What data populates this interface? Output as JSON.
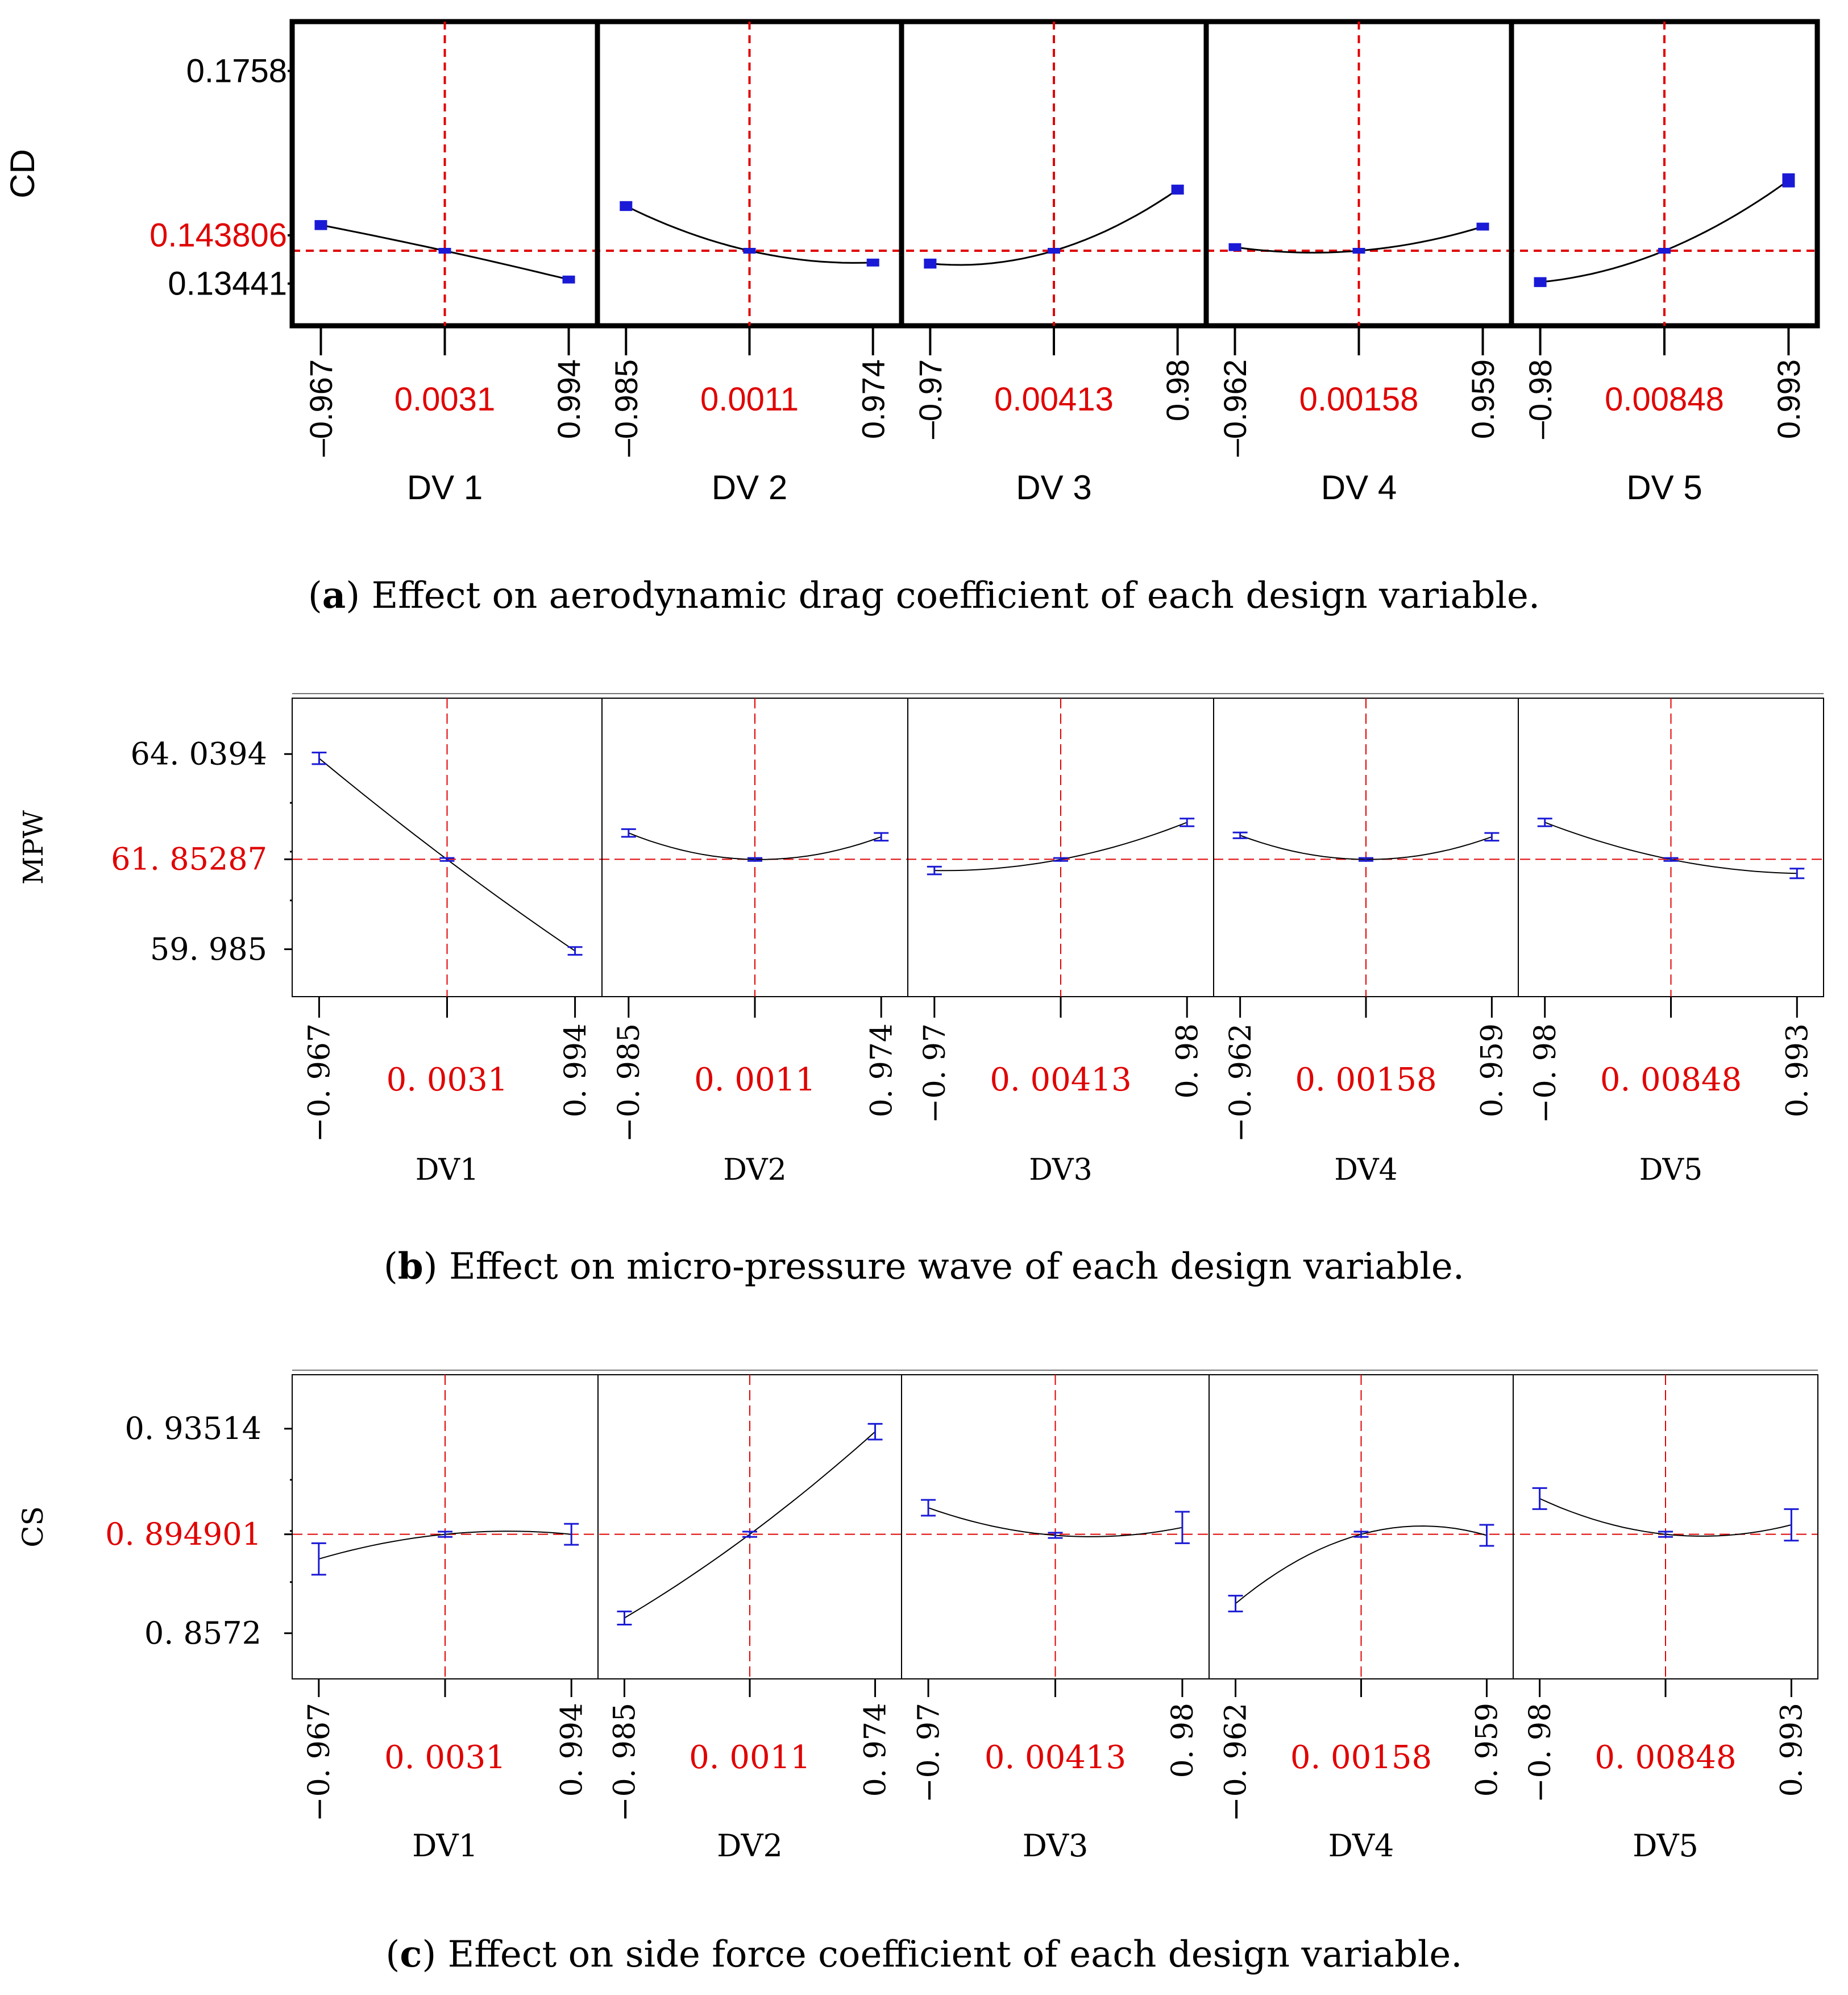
{
  "colors": {
    "curve": "#000000",
    "errorbar": "#1a1ad6",
    "reference": "#e00000",
    "tick_label": "#000000",
    "value_label": "#e00000"
  },
  "captions": [
    {
      "letter": "a",
      "text": " Effect on aerodynamic drag coefficient of each design variable."
    },
    {
      "letter": "b",
      "text": " Effect on micro-pressure wave of each design variable."
    },
    {
      "letter": "c",
      "text": " Effect on side force coefficient of each design variable."
    }
  ],
  "chart_data": [
    {
      "type": "line",
      "title": "Effect on aerodynamic drag coefficient of each design variable",
      "ylabel": "CD",
      "yticks": [
        "0.1758",
        "0.143806",
        "0.13441"
      ],
      "ylim": [
        0.1262,
        0.1854
      ],
      "reference_y": 0.1408,
      "panels": [
        {
          "xlabel": "DV 1",
          "xmin_label": "–0.967",
          "xmid_label": "0.0031",
          "xmax_label": "0.994",
          "x": [
            -0.967,
            0.0031,
            0.994
          ],
          "y": [
            0.1458,
            0.1408,
            0.1352
          ],
          "err": [
            0.0008,
            0.0004,
            0.0006
          ]
        },
        {
          "xlabel": "DV 2",
          "xmin_label": "–0.985",
          "xmid_label": "0.0011",
          "xmax_label": "0.974",
          "x": [
            -0.985,
            0.0011,
            0.974
          ],
          "y": [
            0.1495,
            0.1408,
            0.1385
          ],
          "err": [
            0.0008,
            0.0004,
            0.0006
          ]
        },
        {
          "xlabel": "DV 3",
          "xmin_label": "–0.97",
          "xmid_label": "0.00413",
          "xmax_label": "0.98",
          "x": [
            -0.97,
            0.00413,
            0.98
          ],
          "y": [
            0.1383,
            0.1408,
            0.1527
          ],
          "err": [
            0.0008,
            0.0004,
            0.0008
          ]
        },
        {
          "xlabel": "DV 4",
          "xmin_label": "–0.962",
          "xmid_label": "0.00158",
          "xmax_label": "0.959",
          "x": [
            -0.962,
            0.00158,
            0.959
          ],
          "y": [
            0.1415,
            0.1408,
            0.1455
          ],
          "err": [
            0.0006,
            0.0004,
            0.0006
          ]
        },
        {
          "xlabel": "DV 5",
          "xmin_label": "–0.98",
          "xmid_label": "0.00848",
          "xmax_label": "0.993",
          "x": [
            -0.98,
            0.00848,
            0.993
          ],
          "y": [
            0.1347,
            0.1408,
            0.1545
          ],
          "err": [
            0.0008,
            0.0004,
            0.0012
          ]
        }
      ]
    },
    {
      "type": "line",
      "title": "Effect on micro-pressure wave of each design variable",
      "ylabel": "MPW",
      "yticks": [
        "64. 0394",
        "61. 85287",
        "59. 985"
      ],
      "ylim": [
        59.0,
        65.2
      ],
      "reference_y": 61.85287,
      "panels": [
        {
          "xlabel": "DV1",
          "xmin_label": "−0. 967",
          "xmid_label": "0. 0031",
          "xmax_label": "0. 994",
          "x": [
            -0.967,
            0.0031,
            0.994
          ],
          "y": [
            63.95,
            61.85,
            59.95
          ],
          "err": [
            0.12,
            0.03,
            0.08
          ]
        },
        {
          "xlabel": "DV2",
          "xmin_label": "−0. 985",
          "xmid_label": "0. 0011",
          "xmax_label": "0. 974",
          "x": [
            -0.985,
            0.0011,
            0.974
          ],
          "y": [
            62.4,
            61.85,
            62.32
          ],
          "err": [
            0.08,
            0.03,
            0.08
          ]
        },
        {
          "xlabel": "DV3",
          "xmin_label": "−0. 97",
          "xmid_label": "0. 00413",
          "xmax_label": "0. 98",
          "x": [
            -0.97,
            0.00413,
            0.98
          ],
          "y": [
            61.62,
            61.85,
            62.62
          ],
          "err": [
            0.08,
            0.03,
            0.08
          ]
        },
        {
          "xlabel": "DV4",
          "xmin_label": "−0. 962",
          "xmid_label": "0. 00158",
          "xmax_label": "0. 959",
          "x": [
            -0.962,
            0.00158,
            0.959
          ],
          "y": [
            62.35,
            61.85,
            62.32
          ],
          "err": [
            0.06,
            0.03,
            0.08
          ]
        },
        {
          "xlabel": "DV5",
          "xmin_label": "−0. 98",
          "xmid_label": "0. 00848",
          "xmax_label": "0. 993",
          "x": [
            -0.98,
            0.00848,
            0.993
          ],
          "y": [
            62.62,
            61.85,
            61.56
          ],
          "err": [
            0.08,
            0.03,
            0.1
          ]
        }
      ]
    },
    {
      "type": "line",
      "title": "Effect on side force coefficient of each design variable",
      "ylabel": "CS",
      "yticks": [
        "0. 93514",
        "0. 894901",
        "0. 8572"
      ],
      "ylim": [
        0.8398,
        0.9557
      ],
      "reference_y": 0.894901,
      "panels": [
        {
          "xlabel": "DV1",
          "xmin_label": "−0. 967",
          "xmid_label": "0. 0031",
          "xmax_label": "0. 994",
          "x": [
            -0.967,
            0.0031,
            0.994
          ],
          "y": [
            0.8855,
            0.8949,
            0.8949
          ],
          "err": [
            0.006,
            0.001,
            0.004
          ]
        },
        {
          "xlabel": "DV2",
          "xmin_label": "−0. 985",
          "xmid_label": "0. 0011",
          "xmax_label": "0. 974",
          "x": [
            -0.985,
            0.0011,
            0.974
          ],
          "y": [
            0.863,
            0.8949,
            0.934
          ],
          "err": [
            0.0025,
            0.001,
            0.003
          ]
        },
        {
          "xlabel": "DV3",
          "xmin_label": "−0. 97",
          "xmid_label": "0. 00413",
          "xmax_label": "0. 98",
          "x": [
            -0.97,
            0.00413,
            0.98
          ],
          "y": [
            0.905,
            0.8945,
            0.8975
          ],
          "err": [
            0.003,
            0.001,
            0.006
          ]
        },
        {
          "xlabel": "DV4",
          "xmin_label": "−0. 962",
          "xmid_label": "0. 00158",
          "xmax_label": "0. 959",
          "x": [
            -0.962,
            0.00158,
            0.959
          ],
          "y": [
            0.8685,
            0.8949,
            0.8945
          ],
          "err": [
            0.003,
            0.001,
            0.004
          ]
        },
        {
          "xlabel": "DV5",
          "xmin_label": "−0. 98",
          "xmid_label": "0. 00848",
          "xmax_label": "0. 993",
          "x": [
            -0.98,
            0.00848,
            0.993
          ],
          "y": [
            0.9085,
            0.8949,
            0.8985
          ],
          "err": [
            0.004,
            0.001,
            0.006
          ]
        }
      ]
    }
  ]
}
